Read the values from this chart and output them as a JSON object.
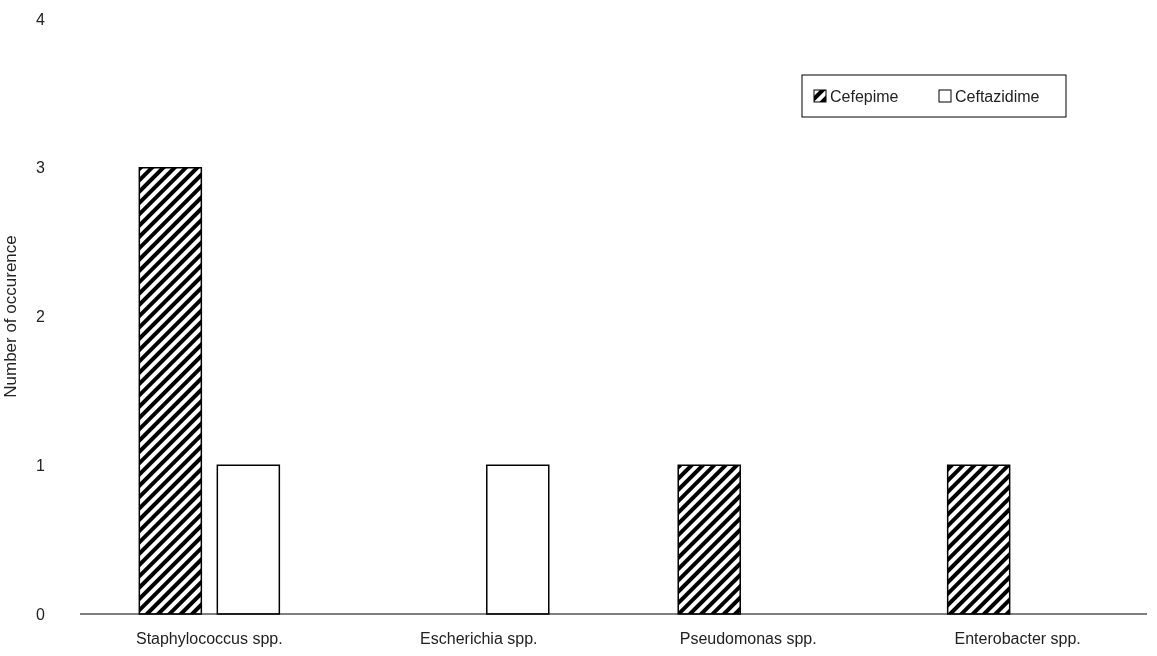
{
  "chart_data": {
    "type": "bar",
    "ylabel": "Number of occurence",
    "categories": [
      "Staphylococcus spp.",
      "Escherichia spp.",
      "Pseudomonas spp.",
      "Enterobacter spp."
    ],
    "series": [
      {
        "name": "Cefepime",
        "color": "#000000",
        "values": [
          3,
          0,
          1,
          1
        ]
      },
      {
        "name": "Ceftazidime",
        "color": "#ffffff",
        "values": [
          1,
          1,
          0,
          0
        ]
      }
    ],
    "ylim": [
      0,
      4
    ],
    "yticks": [
      0,
      1,
      2,
      3,
      4
    ],
    "grid": false,
    "legend": "top right"
  }
}
